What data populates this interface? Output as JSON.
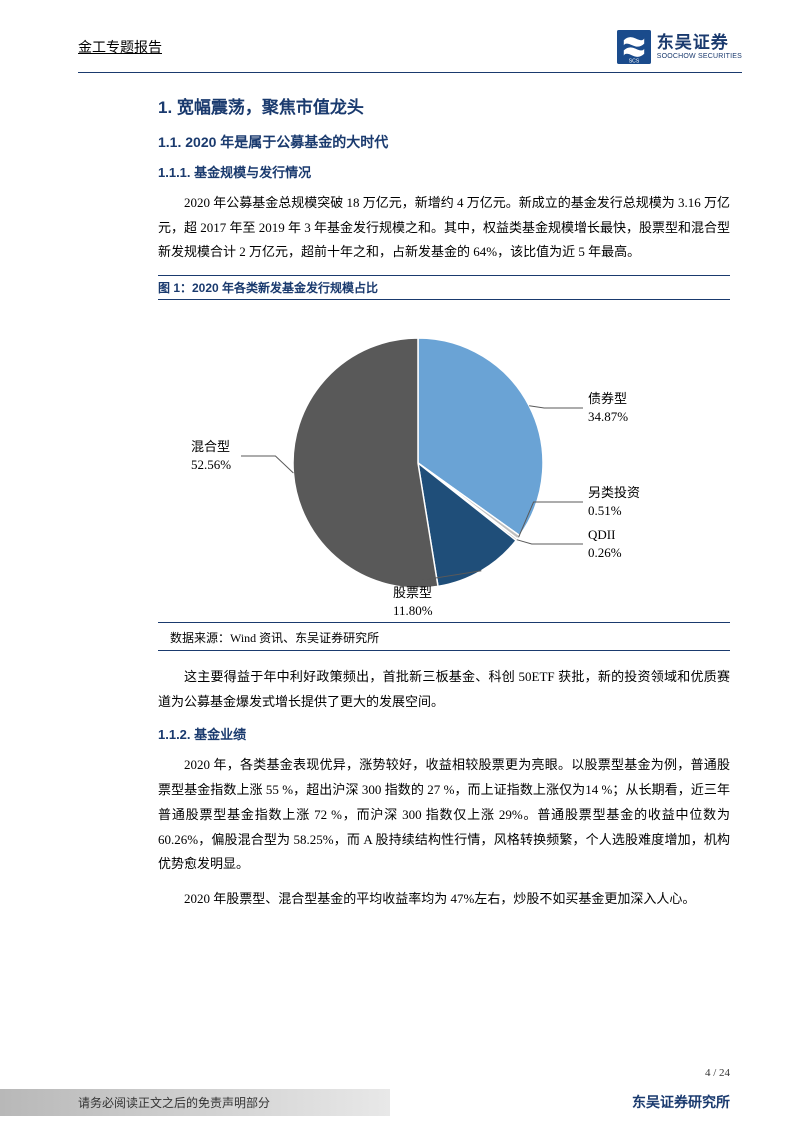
{
  "header": {
    "title": "金工专题报告",
    "logo_cn": "东吴证券",
    "logo_en": "SOOCHOW SECURITIES",
    "logo_badge": "SCS"
  },
  "section1": {
    "h1": "1.  宽幅震荡，聚焦市值龙头",
    "h2": "1.1.  2020 年是属于公募基金的大时代",
    "h3_1": "1.1.1.  基金规模与发行情况",
    "para1": "2020 年公募基金总规模突破 18 万亿元，新增约 4 万亿元。新成立的基金发行总规模为 3.16 万亿元，超 2017 年至 2019 年 3 年基金发行规模之和。其中，权益类基金规模增长最快，股票型和混合型新发规模合计 2 万亿元，超前十年之和，占新发基金的 64%，该比值为近 5 年最高。",
    "figure_title": "图 1：2020 年各类新发基金发行规模占比",
    "source": "数据来源：Wind 资讯、东吴证券研究所",
    "para2": "这主要得益于年中利好政策频出，首批新三板基金、科创 50ETF 获批，新的投资领域和优质赛道为公募基金爆发式增长提供了更大的发展空间。",
    "h3_2": "1.1.2.  基金业绩",
    "para3": "2020 年，各类基金表现优异，涨势较好，收益相较股票更为亮眼。以股票型基金为例，普通股票型基金指数上涨 55 %，超出沪深 300 指数的 27 %，而上证指数上涨仅为14 %；从长期看，近三年普通股票型基金指数上涨 72 %，而沪深 300 指数仅上涨 29%。普通股票型基金的收益中位数为 60.26%，偏股混合型为 58.25%，而 A 股持续结构性行情，风格转换频繁，个人选股难度增加，机构优势愈发明显。",
    "para4": "2020 年股票型、混合型基金的平均收益率均为 47%左右，炒股不如买基金更加深入人心。"
  },
  "pie_chart": {
    "type": "pie",
    "slices": [
      {
        "label": "债券型",
        "value": 34.87,
        "pct": "34.87%",
        "color": "#6aa3d5"
      },
      {
        "label": "另类投资",
        "value": 0.51,
        "pct": "0.51%",
        "color": "#bfbfbf"
      },
      {
        "label": "QDII",
        "value": 0.26,
        "pct": "0.26%",
        "color": "#a6a6a6"
      },
      {
        "label": "股票型",
        "value": 11.8,
        "pct": "11.80%",
        "color": "#1f4e79"
      },
      {
        "label": "混合型",
        "value": 52.56,
        "pct": "52.56%",
        "color": "#595959"
      }
    ],
    "label_fontsize": 13,
    "label_fontfamily": "KaiTi",
    "background_color": "#ffffff",
    "stroke_color": "#ffffff",
    "stroke_width": 1.5
  },
  "footer": {
    "page": "4 / 24",
    "disclaimer": "请务必阅读正文之后的免责声明部分",
    "org": "东吴证券研究所"
  }
}
